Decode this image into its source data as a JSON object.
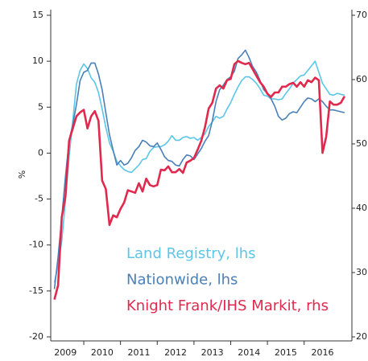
{
  "chart_data": {
    "type": "line",
    "ylabel": "%",
    "x": [
      2009.2,
      2009.3,
      2009.4,
      2009.5,
      2009.6,
      2009.7,
      2009.8,
      2009.9,
      2010.0,
      2010.1,
      2010.2,
      2010.3,
      2010.4,
      2010.5,
      2010.6,
      2010.7,
      2010.8,
      2010.9,
      2011.0,
      2011.1,
      2011.2,
      2011.3,
      2011.4,
      2011.5,
      2011.6,
      2011.7,
      2011.8,
      2011.9,
      2012.0,
      2012.1,
      2012.2,
      2012.3,
      2012.4,
      2012.5,
      2012.6,
      2012.7,
      2012.8,
      2012.9,
      2013.0,
      2013.1,
      2013.2,
      2013.3,
      2013.4,
      2013.5,
      2013.6,
      2013.7,
      2013.8,
      2013.9,
      2014.0,
      2014.1,
      2014.2,
      2014.3,
      2014.4,
      2014.5,
      2014.6,
      2014.7,
      2014.8,
      2014.9,
      2015.0,
      2015.1,
      2015.2,
      2015.3,
      2015.4,
      2015.5,
      2015.6,
      2015.7,
      2015.8,
      2015.9,
      2016.0,
      2016.1,
      2016.2,
      2016.3,
      2016.4,
      2016.5,
      2016.6,
      2016.7,
      2016.8,
      2016.9,
      2017.0,
      2017.1
    ],
    "series": [
      {
        "name": "Land Registry, lhs",
        "color": "#5cc6e8",
        "axis": "y",
        "values": [
          -14.1,
          -12.2,
          -9.6,
          -5.2,
          -0.4,
          3.5,
          7.5,
          9.0,
          9.7,
          9.2,
          8.2,
          7.7,
          6.6,
          4.8,
          2.8,
          1.1,
          0.2,
          -0.9,
          -1.4,
          -1.8,
          -2.0,
          -2.1,
          -1.7,
          -1.3,
          -0.7,
          -0.6,
          0.2,
          0.6,
          0.7,
          0.7,
          0.9,
          1.3,
          1.9,
          1.4,
          1.4,
          1.7,
          1.8,
          1.6,
          1.7,
          1.4,
          1.7,
          2.1,
          2.9,
          3.4,
          4.0,
          3.8,
          4.0,
          4.8,
          5.5,
          6.4,
          7.2,
          7.9,
          8.3,
          8.3,
          8.0,
          7.6,
          7.0,
          6.3,
          6.2,
          5.9,
          5.9,
          5.8,
          5.9,
          6.5,
          7.0,
          7.6,
          8.0,
          8.4,
          8.5,
          9.0,
          9.5,
          10.0,
          8.8,
          7.6,
          7.0,
          6.4,
          6.3,
          6.5,
          6.4,
          6.3
        ]
      },
      {
        "name": "Nationwide, lhs",
        "color": "#4a80b8",
        "axis": "y",
        "values": [
          -14.8,
          -11.3,
          -7.0,
          -2.6,
          1.4,
          3.1,
          5.3,
          7.9,
          8.8,
          9.0,
          9.8,
          9.8,
          8.6,
          6.9,
          4.4,
          2.0,
          0.3,
          -1.3,
          -0.8,
          -1.3,
          -1.1,
          -0.5,
          0.3,
          0.7,
          1.4,
          1.2,
          0.8,
          0.7,
          1.1,
          0.4,
          -0.4,
          -0.8,
          -0.9,
          -1.3,
          -1.4,
          -0.7,
          -0.2,
          -0.3,
          -0.7,
          -0.1,
          0.5,
          1.3,
          1.9,
          3.5,
          5.6,
          6.9,
          7.4,
          8.0,
          8.3,
          8.9,
          10.3,
          10.7,
          11.2,
          10.4,
          9.4,
          8.8,
          7.9,
          6.9,
          6.5,
          5.9,
          5.1,
          4.0,
          3.6,
          3.8,
          4.3,
          4.5,
          4.4,
          5.0,
          5.6,
          6.0,
          5.9,
          5.6,
          5.9,
          5.6,
          5.1,
          4.7,
          4.7,
          4.6,
          4.5,
          4.4
        ]
      },
      {
        "name": "Knight Frank/IHS Markit, rhs",
        "color": "#e0294c",
        "axis": "y2",
        "values": [
          25.8,
          28.0,
          38.6,
          41.8,
          50.5,
          52.4,
          54.3,
          54.9,
          55.3,
          52.4,
          54.3,
          55.1,
          53.6,
          44.3,
          43.0,
          37.4,
          38.9,
          38.6,
          39.9,
          40.9,
          42.8,
          42.6,
          42.4,
          43.9,
          42.6,
          44.6,
          43.6,
          43.4,
          43.6,
          46.0,
          45.9,
          46.5,
          45.6,
          45.6,
          46.1,
          45.5,
          47.1,
          47.4,
          47.8,
          49.1,
          50.5,
          52.6,
          55.5,
          56.4,
          58.6,
          59.1,
          58.6,
          59.9,
          60.1,
          62.4,
          62.9,
          62.6,
          62.4,
          62.6,
          61.6,
          60.6,
          59.6,
          58.9,
          57.8,
          57.3,
          58.0,
          58.0,
          58.9,
          58.9,
          59.3,
          59.5,
          58.9,
          59.6,
          58.9,
          59.9,
          59.6,
          60.3,
          59.9,
          48.6,
          51.1,
          56.6,
          56.1,
          56.1,
          56.4,
          57.4
        ]
      }
    ],
    "xlim": [
      2009.1,
      2017.3
    ],
    "xticks": [
      2009,
      2010,
      2011,
      2012,
      2013,
      2014,
      2015,
      2016
    ],
    "ylim": [
      -20,
      15
    ],
    "yticks": [
      -20,
      -15,
      -10,
      -5,
      0,
      5,
      10,
      15
    ],
    "y2lim": [
      20,
      70
    ],
    "y2ticks": [
      20,
      30,
      40,
      50,
      60,
      70
    ],
    "grid": false
  }
}
